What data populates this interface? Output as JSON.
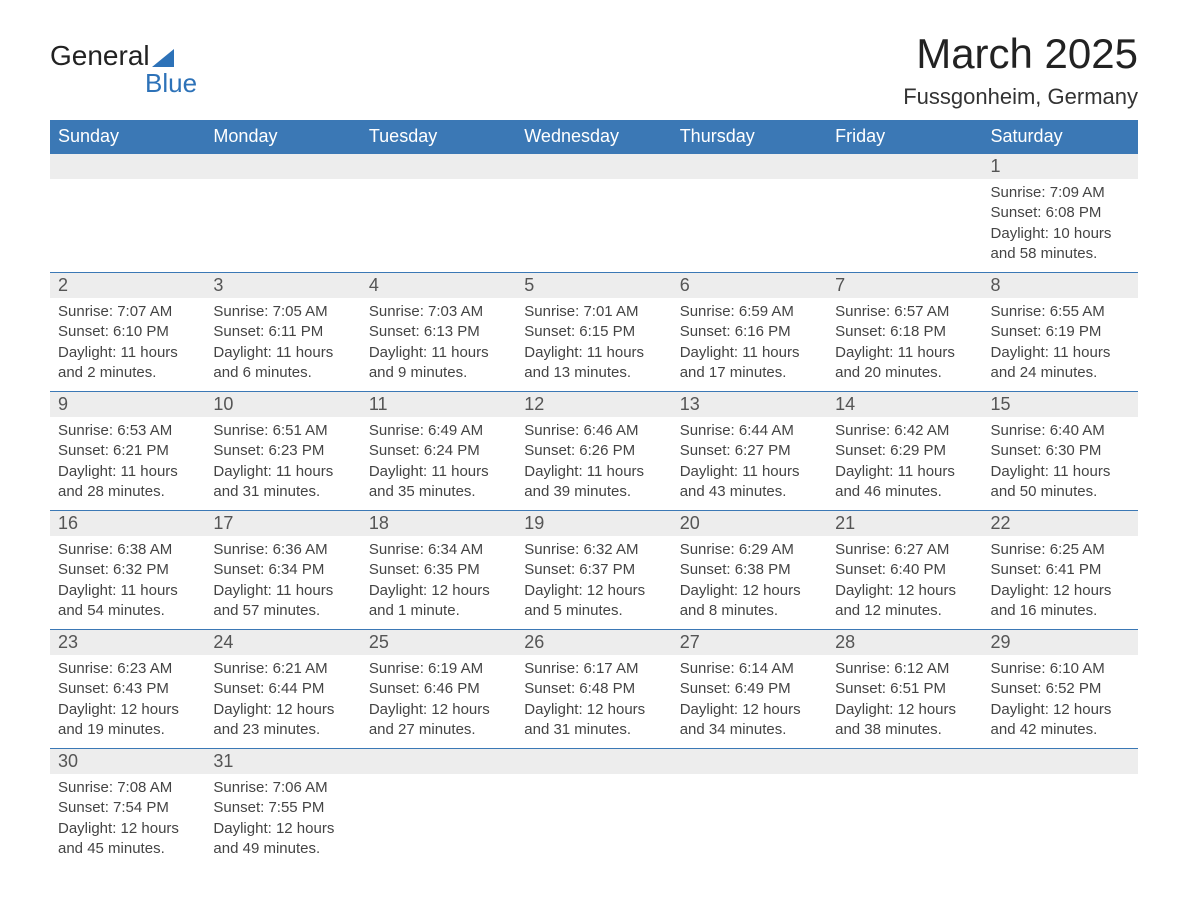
{
  "logo": {
    "text_a": "General",
    "text_b": "Blue"
  },
  "title": "March 2025",
  "subtitle": "Fussgonheim, Germany",
  "colors": {
    "header_bg": "#3b78b5",
    "header_text": "#ffffff",
    "daynum_bg": "#ededed",
    "border": "#3b78b5",
    "body_bg": "#ffffff",
    "text": "#444444",
    "logo_accent": "#2d72b8"
  },
  "days_of_week": [
    "Sunday",
    "Monday",
    "Tuesday",
    "Wednesday",
    "Thursday",
    "Friday",
    "Saturday"
  ],
  "weeks": [
    [
      null,
      null,
      null,
      null,
      null,
      null,
      {
        "n": "1",
        "sr": "Sunrise: 7:09 AM",
        "ss": "Sunset: 6:08 PM",
        "d1": "Daylight: 10 hours",
        "d2": "and 58 minutes."
      }
    ],
    [
      {
        "n": "2",
        "sr": "Sunrise: 7:07 AM",
        "ss": "Sunset: 6:10 PM",
        "d1": "Daylight: 11 hours",
        "d2": "and 2 minutes."
      },
      {
        "n": "3",
        "sr": "Sunrise: 7:05 AM",
        "ss": "Sunset: 6:11 PM",
        "d1": "Daylight: 11 hours",
        "d2": "and 6 minutes."
      },
      {
        "n": "4",
        "sr": "Sunrise: 7:03 AM",
        "ss": "Sunset: 6:13 PM",
        "d1": "Daylight: 11 hours",
        "d2": "and 9 minutes."
      },
      {
        "n": "5",
        "sr": "Sunrise: 7:01 AM",
        "ss": "Sunset: 6:15 PM",
        "d1": "Daylight: 11 hours",
        "d2": "and 13 minutes."
      },
      {
        "n": "6",
        "sr": "Sunrise: 6:59 AM",
        "ss": "Sunset: 6:16 PM",
        "d1": "Daylight: 11 hours",
        "d2": "and 17 minutes."
      },
      {
        "n": "7",
        "sr": "Sunrise: 6:57 AM",
        "ss": "Sunset: 6:18 PM",
        "d1": "Daylight: 11 hours",
        "d2": "and 20 minutes."
      },
      {
        "n": "8",
        "sr": "Sunrise: 6:55 AM",
        "ss": "Sunset: 6:19 PM",
        "d1": "Daylight: 11 hours",
        "d2": "and 24 minutes."
      }
    ],
    [
      {
        "n": "9",
        "sr": "Sunrise: 6:53 AM",
        "ss": "Sunset: 6:21 PM",
        "d1": "Daylight: 11 hours",
        "d2": "and 28 minutes."
      },
      {
        "n": "10",
        "sr": "Sunrise: 6:51 AM",
        "ss": "Sunset: 6:23 PM",
        "d1": "Daylight: 11 hours",
        "d2": "and 31 minutes."
      },
      {
        "n": "11",
        "sr": "Sunrise: 6:49 AM",
        "ss": "Sunset: 6:24 PM",
        "d1": "Daylight: 11 hours",
        "d2": "and 35 minutes."
      },
      {
        "n": "12",
        "sr": "Sunrise: 6:46 AM",
        "ss": "Sunset: 6:26 PM",
        "d1": "Daylight: 11 hours",
        "d2": "and 39 minutes."
      },
      {
        "n": "13",
        "sr": "Sunrise: 6:44 AM",
        "ss": "Sunset: 6:27 PM",
        "d1": "Daylight: 11 hours",
        "d2": "and 43 minutes."
      },
      {
        "n": "14",
        "sr": "Sunrise: 6:42 AM",
        "ss": "Sunset: 6:29 PM",
        "d1": "Daylight: 11 hours",
        "d2": "and 46 minutes."
      },
      {
        "n": "15",
        "sr": "Sunrise: 6:40 AM",
        "ss": "Sunset: 6:30 PM",
        "d1": "Daylight: 11 hours",
        "d2": "and 50 minutes."
      }
    ],
    [
      {
        "n": "16",
        "sr": "Sunrise: 6:38 AM",
        "ss": "Sunset: 6:32 PM",
        "d1": "Daylight: 11 hours",
        "d2": "and 54 minutes."
      },
      {
        "n": "17",
        "sr": "Sunrise: 6:36 AM",
        "ss": "Sunset: 6:34 PM",
        "d1": "Daylight: 11 hours",
        "d2": "and 57 minutes."
      },
      {
        "n": "18",
        "sr": "Sunrise: 6:34 AM",
        "ss": "Sunset: 6:35 PM",
        "d1": "Daylight: 12 hours",
        "d2": "and 1 minute."
      },
      {
        "n": "19",
        "sr": "Sunrise: 6:32 AM",
        "ss": "Sunset: 6:37 PM",
        "d1": "Daylight: 12 hours",
        "d2": "and 5 minutes."
      },
      {
        "n": "20",
        "sr": "Sunrise: 6:29 AM",
        "ss": "Sunset: 6:38 PM",
        "d1": "Daylight: 12 hours",
        "d2": "and 8 minutes."
      },
      {
        "n": "21",
        "sr": "Sunrise: 6:27 AM",
        "ss": "Sunset: 6:40 PM",
        "d1": "Daylight: 12 hours",
        "d2": "and 12 minutes."
      },
      {
        "n": "22",
        "sr": "Sunrise: 6:25 AM",
        "ss": "Sunset: 6:41 PM",
        "d1": "Daylight: 12 hours",
        "d2": "and 16 minutes."
      }
    ],
    [
      {
        "n": "23",
        "sr": "Sunrise: 6:23 AM",
        "ss": "Sunset: 6:43 PM",
        "d1": "Daylight: 12 hours",
        "d2": "and 19 minutes."
      },
      {
        "n": "24",
        "sr": "Sunrise: 6:21 AM",
        "ss": "Sunset: 6:44 PM",
        "d1": "Daylight: 12 hours",
        "d2": "and 23 minutes."
      },
      {
        "n": "25",
        "sr": "Sunrise: 6:19 AM",
        "ss": "Sunset: 6:46 PM",
        "d1": "Daylight: 12 hours",
        "d2": "and 27 minutes."
      },
      {
        "n": "26",
        "sr": "Sunrise: 6:17 AM",
        "ss": "Sunset: 6:48 PM",
        "d1": "Daylight: 12 hours",
        "d2": "and 31 minutes."
      },
      {
        "n": "27",
        "sr": "Sunrise: 6:14 AM",
        "ss": "Sunset: 6:49 PM",
        "d1": "Daylight: 12 hours",
        "d2": "and 34 minutes."
      },
      {
        "n": "28",
        "sr": "Sunrise: 6:12 AM",
        "ss": "Sunset: 6:51 PM",
        "d1": "Daylight: 12 hours",
        "d2": "and 38 minutes."
      },
      {
        "n": "29",
        "sr": "Sunrise: 6:10 AM",
        "ss": "Sunset: 6:52 PM",
        "d1": "Daylight: 12 hours",
        "d2": "and 42 minutes."
      }
    ],
    [
      {
        "n": "30",
        "sr": "Sunrise: 7:08 AM",
        "ss": "Sunset: 7:54 PM",
        "d1": "Daylight: 12 hours",
        "d2": "and 45 minutes."
      },
      {
        "n": "31",
        "sr": "Sunrise: 7:06 AM",
        "ss": "Sunset: 7:55 PM",
        "d1": "Daylight: 12 hours",
        "d2": "and 49 minutes."
      },
      null,
      null,
      null,
      null,
      null
    ]
  ]
}
